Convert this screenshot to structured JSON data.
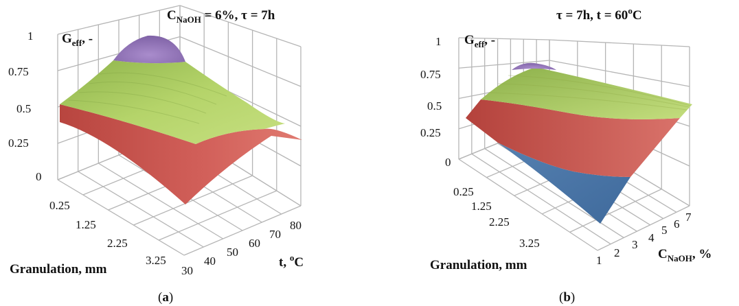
{
  "chart_data": [
    {
      "type": "surface3d",
      "panel_label": "(a)",
      "panel_letter": "a",
      "title": "C",
      "title_sub": "NaOH",
      "title_rest": " = 6%, τ = 7h",
      "zlabel": "G",
      "zlabel_sub": "eff",
      "zlabel_rest": ", -",
      "xlabel": "Granulation, mm",
      "ylabel": "t, ",
      "ylabel_sup": "o",
      "ylabel_rest": "C",
      "z_ticks": [
        "0",
        "0.25",
        "0.5",
        "0.75",
        "1"
      ],
      "x_ticks": [
        "0.25",
        "1.25",
        "2.25",
        "3.25"
      ],
      "y_ticks": [
        "30",
        "40",
        "50",
        "60",
        "70",
        "80"
      ],
      "zlim": [
        0,
        1
      ],
      "color_bands": [
        {
          "range": "0-0.25",
          "color": "#4a78a8"
        },
        {
          "range": "0.25-0.5",
          "color": "#c0504d"
        },
        {
          "range": "0.5-0.75",
          "color": "#9bbb59"
        },
        {
          "range": "0.75-1",
          "color": "#8064a2"
        }
      ]
    },
    {
      "type": "surface3d",
      "panel_label": "(b)",
      "panel_letter": "b",
      "title": "τ = 7h, t = 60",
      "title_sup": "o",
      "title_rest": "C",
      "zlabel": "G",
      "zlabel_sub": "eff",
      "zlabel_rest": ", -",
      "xlabel": "Granulation, mm",
      "ylabel": "C",
      "ylabel_sub": "NaOH",
      "ylabel_rest": ", %",
      "z_ticks": [
        "0",
        "0.25",
        "0.5",
        "0.75",
        "1"
      ],
      "x_ticks": [
        "0.25",
        "1.25",
        "2.25",
        "3.25"
      ],
      "y_ticks": [
        "1",
        "2",
        "3",
        "4",
        "5",
        "6",
        "7"
      ],
      "zlim": [
        0,
        1
      ],
      "color_bands": [
        {
          "range": "0-0.25",
          "color": "#4a78a8"
        },
        {
          "range": "0.25-0.5",
          "color": "#c0504d"
        },
        {
          "range": "0.5-0.75",
          "color": "#9bbb59"
        },
        {
          "range": "0.75-1",
          "color": "#8064a2"
        }
      ]
    }
  ]
}
